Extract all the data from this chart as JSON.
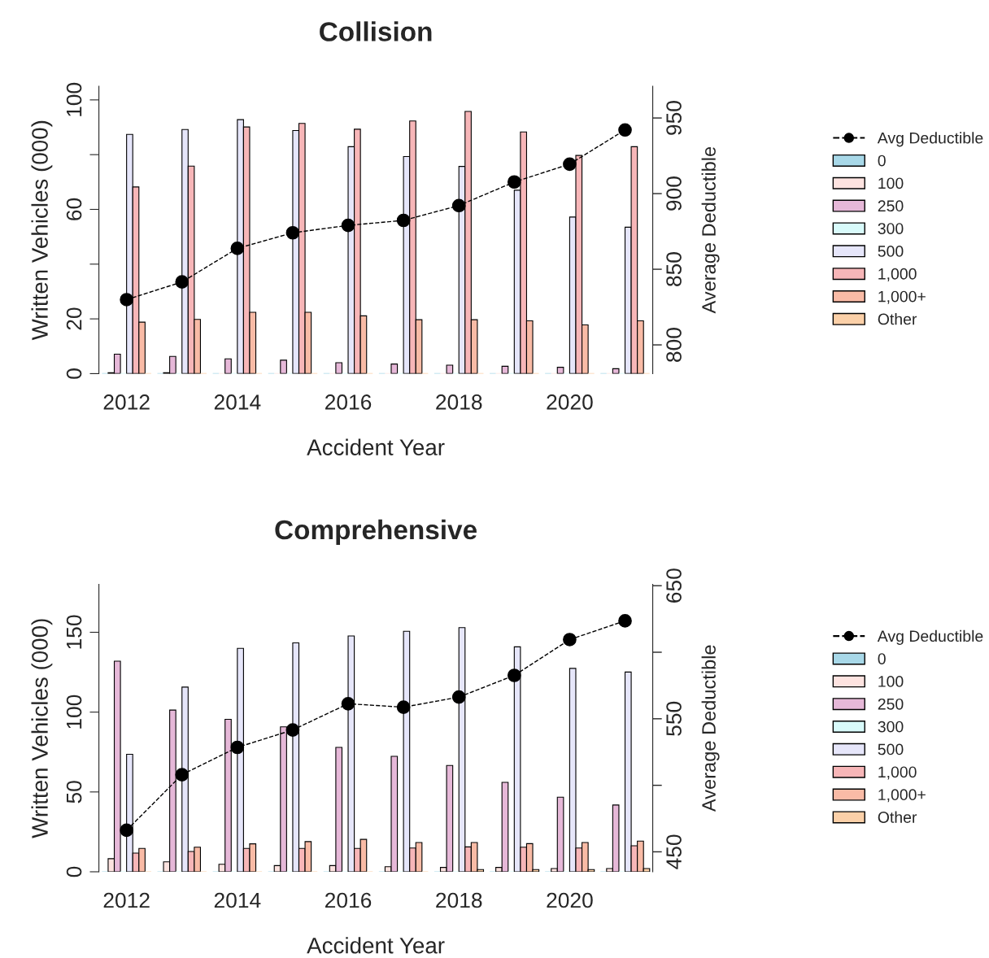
{
  "chart_data": [
    {
      "type": "bar",
      "title": "Collision",
      "xlabel": "Accident Year",
      "ylabel": "Written Vehicles (000)",
      "y2label": "Average Deductible",
      "categories": [
        "2012",
        null,
        "2014",
        null,
        "2016",
        null,
        "2018",
        null,
        "2020",
        null
      ],
      "ylim": [
        0,
        105
      ],
      "yticks": [
        0,
        20,
        {
          "value": 40,
          "label": null
        },
        60,
        {
          "value": 80,
          "label": null
        },
        100
      ],
      "y2lim": [
        781,
        971
      ],
      "y2ticks": [
        800,
        850,
        900,
        950
      ],
      "legend": "right",
      "grid": false,
      "series": [
        {
          "name": "Avg Deductible",
          "type": "line",
          "axis": "y2",
          "color": "#000000",
          "marker": "circle",
          "line_style": "dashed",
          "values": [
            829.9,
            841.6,
            863.8,
            874.1,
            879.0,
            882.3,
            892.1,
            907.7,
            919.5,
            942.1
          ]
        },
        {
          "name": "0",
          "color": "#a8d8e8",
          "values": [
            0,
            0,
            0,
            0,
            0,
            0,
            0,
            0,
            0,
            0
          ]
        },
        {
          "name": "100",
          "color": "#fde3e0",
          "values": [
            0.3,
            0.3,
            0,
            0,
            0,
            0,
            0,
            0,
            0,
            0
          ]
        },
        {
          "name": "250",
          "color": "#e6b8d8",
          "values": [
            7.1,
            6.3,
            5.4,
            4.9,
            4.0,
            3.5,
            3.1,
            2.7,
            2.3,
            1.8
          ]
        },
        {
          "name": "300",
          "color": "#d8fafa",
          "values": [
            0,
            0,
            0,
            0,
            0,
            0,
            0,
            0,
            0,
            0
          ]
        },
        {
          "name": "500",
          "color": "#e6e6fa",
          "values": [
            87.4,
            89.2,
            92.8,
            88.8,
            82.9,
            79.3,
            75.7,
            67.0,
            57.2,
            53.5
          ]
        },
        {
          "name": "1,000",
          "color": "#f7b6b8",
          "values": [
            68.2,
            75.8,
            90.1,
            91.4,
            89.3,
            92.3,
            95.8,
            88.3,
            79.7,
            82.9
          ]
        },
        {
          "name": "1,000+",
          "color": "#f9bba6",
          "values": [
            18.8,
            19.8,
            22.4,
            22.4,
            21.1,
            19.7,
            19.7,
            19.3,
            17.8,
            19.3
          ]
        },
        {
          "name": "Other",
          "color": "#fbd0a8",
          "values": [
            0,
            0,
            0,
            0,
            0,
            0,
            0,
            0,
            0,
            0
          ]
        }
      ]
    },
    {
      "type": "bar",
      "title": "Comprehensive",
      "xlabel": "Accident Year",
      "ylabel": "Written Vehicles (000)",
      "y2label": "Average Deductible",
      "categories": [
        "2012",
        null,
        "2014",
        null,
        "2016",
        null,
        "2018",
        null,
        "2020",
        null
      ],
      "ylim": [
        0,
        180
      ],
      "yticks": [
        0,
        50,
        100,
        150
      ],
      "y2lim": [
        435,
        651
      ],
      "y2ticks": [
        450,
        {
          "value": 500,
          "label": null
        },
        550,
        {
          "value": 600,
          "label": null
        },
        650
      ],
      "legend": "right",
      "grid": false,
      "series": [
        {
          "name": "Avg Deductible",
          "type": "line",
          "axis": "y2",
          "color": "#000000",
          "marker": "circle",
          "line_style": "dashed",
          "values": [
            466.2,
            508.0,
            528.5,
            541.6,
            561.3,
            558.7,
            566.3,
            582.6,
            609.5,
            623.6
          ]
        },
        {
          "name": "0",
          "color": "#a8d8e8",
          "values": [
            0,
            0,
            0,
            0,
            0,
            0,
            0,
            0,
            0,
            0
          ]
        },
        {
          "name": "100",
          "color": "#fde3e0",
          "values": [
            8.2,
            6.2,
            4.7,
            3.9,
            3.9,
            3.2,
            2.7,
            2.7,
            2.0,
            2.0
          ]
        },
        {
          "name": "250",
          "color": "#e6b8d8",
          "values": [
            131.9,
            101.3,
            95.5,
            90.8,
            77.9,
            72.3,
            66.6,
            56.0,
            46.7,
            41.8
          ]
        },
        {
          "name": "300",
          "color": "#d8fafa",
          "values": [
            0,
            0,
            0,
            0,
            0,
            0,
            0,
            0,
            0,
            0
          ]
        },
        {
          "name": "500",
          "color": "#e6e6fa",
          "values": [
            73.6,
            115.7,
            139.9,
            143.4,
            147.7,
            150.6,
            152.9,
            140.9,
            127.4,
            125.1
          ]
        },
        {
          "name": "1,000",
          "color": "#f7b6b8",
          "values": [
            11.7,
            12.7,
            14.6,
            14.6,
            14.6,
            14.9,
            15.6,
            15.4,
            14.9,
            16.3
          ]
        },
        {
          "name": "1,000+",
          "color": "#f9bba6",
          "values": [
            14.6,
            15.4,
            17.5,
            18.9,
            20.3,
            18.3,
            18.3,
            17.6,
            18.3,
            19.2
          ]
        },
        {
          "name": "Other",
          "color": "#fbd0a8",
          "values": [
            0,
            0,
            0,
            0,
            0,
            0,
            1.4,
            1.4,
            1.4,
            2.0
          ]
        }
      ]
    }
  ]
}
